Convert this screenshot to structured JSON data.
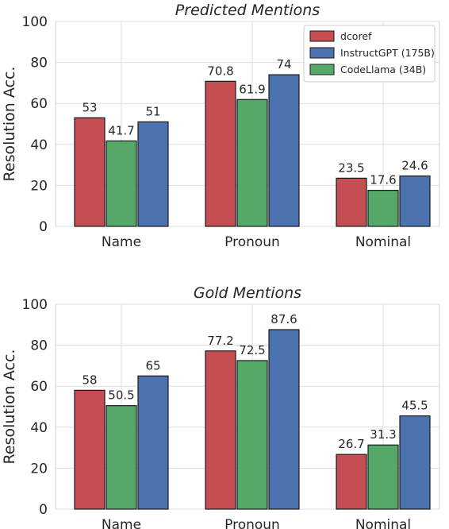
{
  "chart_data": [
    {
      "type": "bar",
      "title": "Predicted Mentions",
      "xlabel": "",
      "ylabel": "Resolution Acc.",
      "ylim": [
        0,
        100
      ],
      "yticks": [
        0,
        20,
        40,
        60,
        80,
        100
      ],
      "grid": true,
      "legend": "top-right",
      "categories": [
        "Name",
        "Pronoun",
        "Nominal"
      ],
      "series": [
        {
          "name": "dcoref",
          "color": "#c44e52",
          "values": [
            53,
            70.8,
            23.5
          ],
          "labels": [
            "53",
            "70.8",
            "23.5"
          ]
        },
        {
          "name": "CodeLlama (34B)",
          "color": "#55a868",
          "values": [
            41.7,
            61.9,
            17.6
          ],
          "labels": [
            "41.7",
            "61.9",
            "17.6"
          ]
        },
        {
          "name": "InstructGPT (175B)",
          "color": "#4c72b0",
          "values": [
            51,
            74,
            24.6
          ],
          "labels": [
            "51",
            "74",
            "24.6"
          ]
        }
      ],
      "legend_order": [
        "dcoref",
        "InstructGPT (175B)",
        "CodeLlama (34B)"
      ]
    },
    {
      "type": "bar",
      "title": "Gold Mentions",
      "xlabel": "",
      "ylabel": "Resolution Acc.",
      "ylim": [
        0,
        100
      ],
      "yticks": [
        0,
        20,
        40,
        60,
        80,
        100
      ],
      "grid": true,
      "legend": "none",
      "categories": [
        "Name",
        "Pronoun",
        "Nominal"
      ],
      "series": [
        {
          "name": "dcoref",
          "color": "#c44e52",
          "values": [
            58,
            77.2,
            26.7
          ],
          "labels": [
            "58",
            "77.2",
            "26.7"
          ]
        },
        {
          "name": "CodeLlama (34B)",
          "color": "#55a868",
          "values": [
            50.5,
            72.5,
            31.3
          ],
          "labels": [
            "50.5",
            "72.5",
            "31.3"
          ]
        },
        {
          "name": "InstructGPT (175B)",
          "color": "#4c72b0",
          "values": [
            65,
            87.6,
            45.5
          ],
          "labels": [
            "65",
            "87.6",
            "45.5"
          ]
        }
      ],
      "legend_order": []
    }
  ]
}
